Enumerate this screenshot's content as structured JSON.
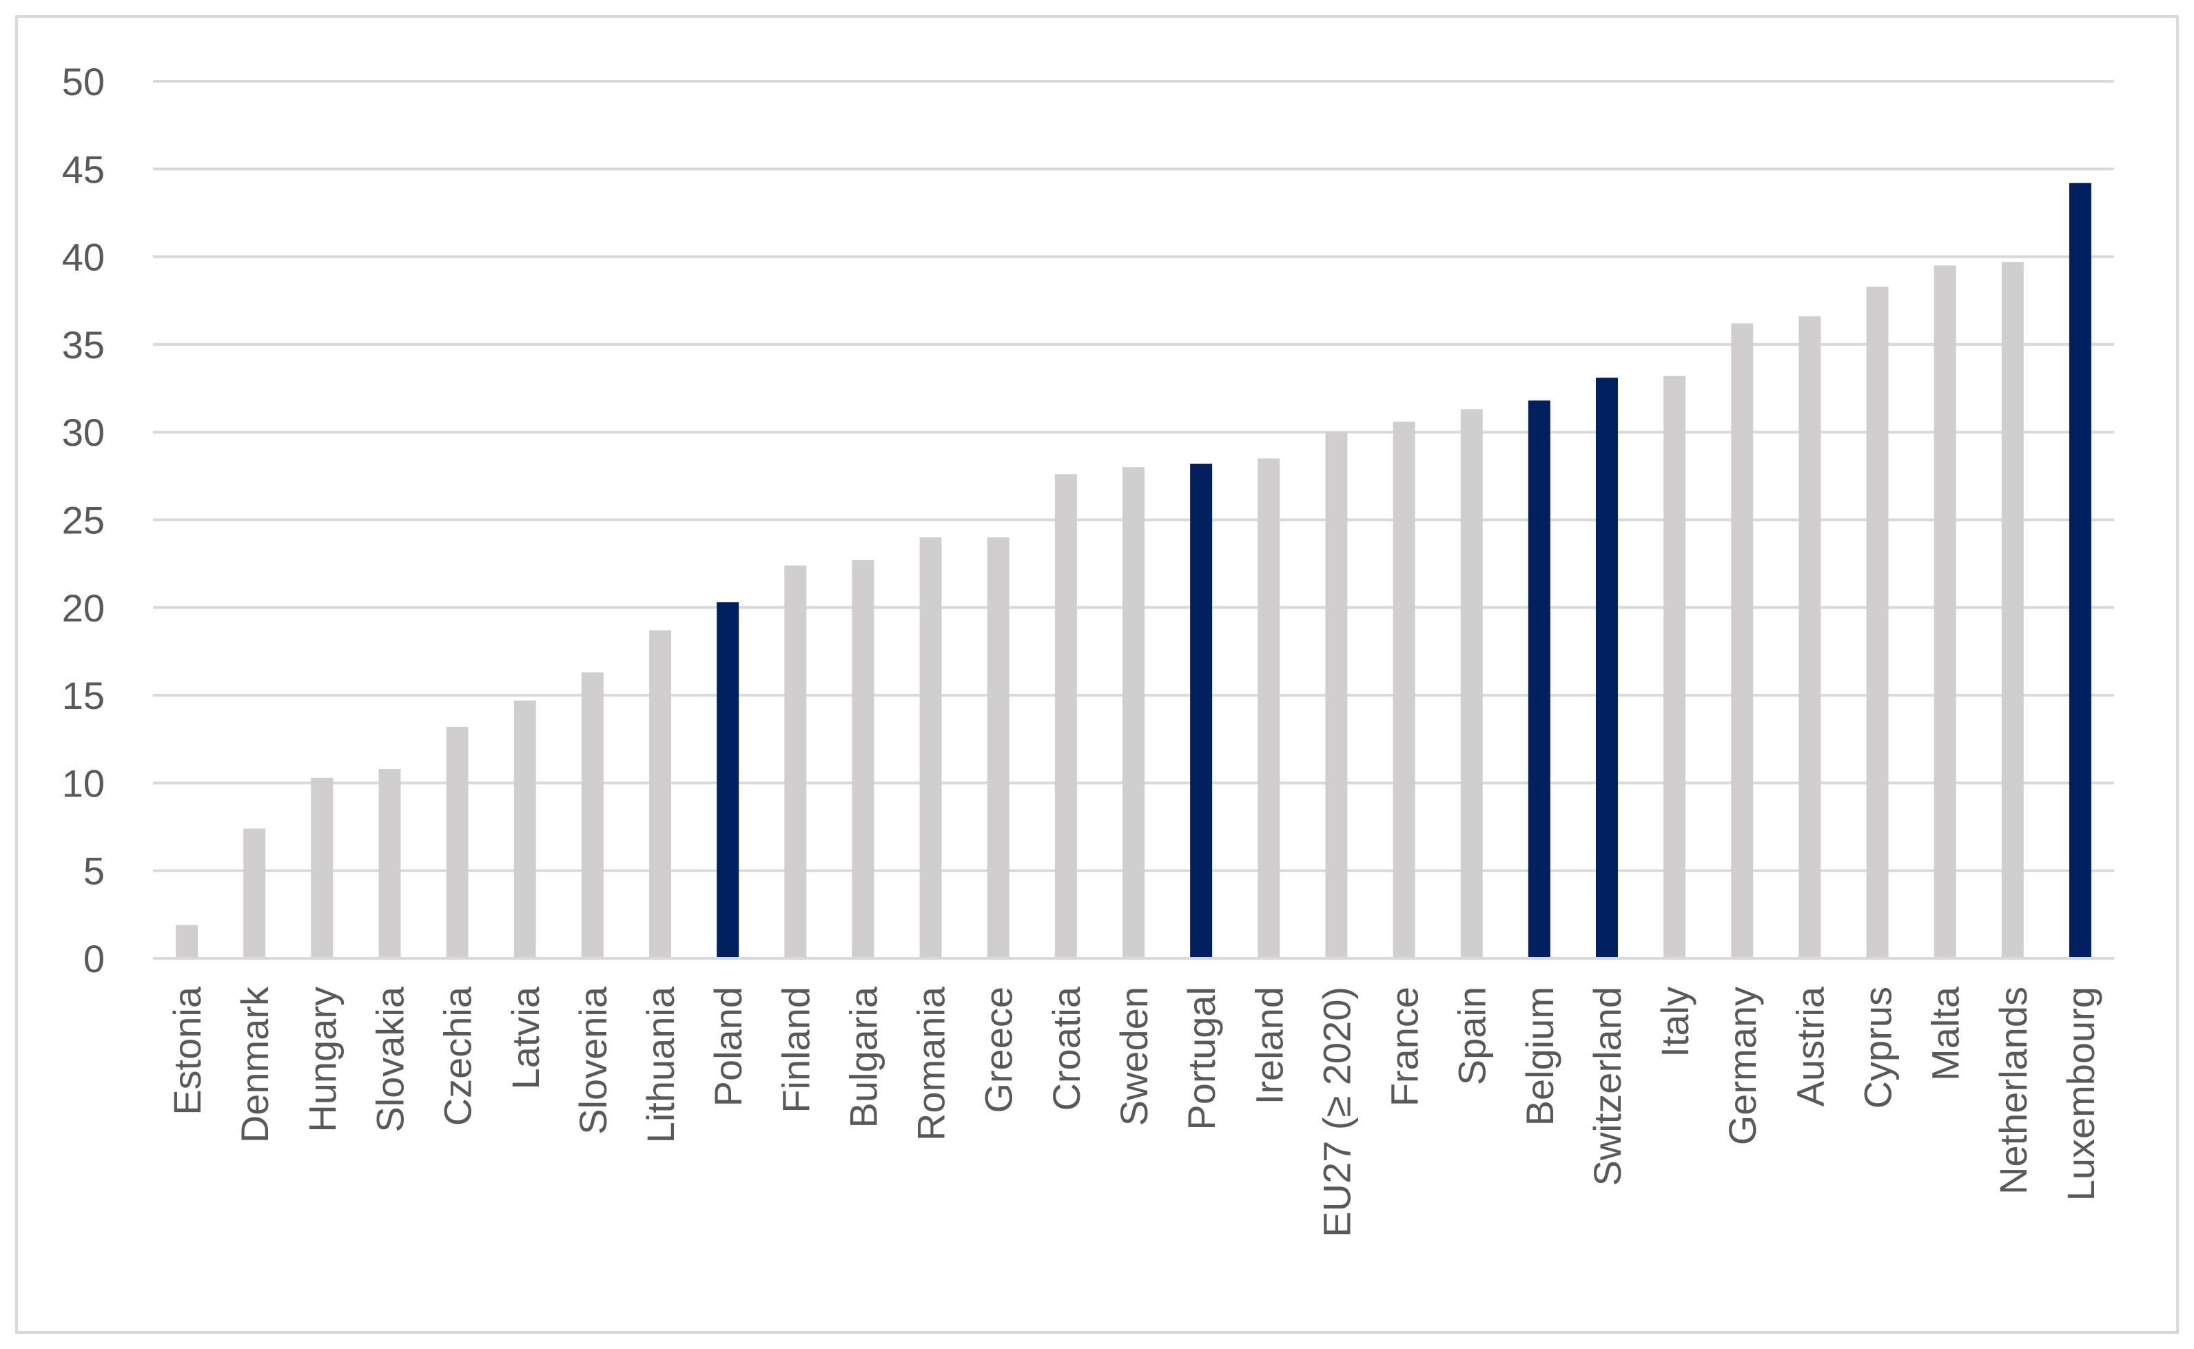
{
  "chart_data": {
    "type": "bar",
    "title": "",
    "xlabel": "",
    "ylabel": "",
    "ylim": [
      0,
      50
    ],
    "yticks": [
      0,
      5,
      10,
      15,
      20,
      25,
      30,
      35,
      40,
      45,
      50
    ],
    "grid": true,
    "legend": "none",
    "colors": {
      "default": "#d0cece",
      "highlight": "#002060",
      "gridline": "#d9d9d9",
      "text": "#595959"
    },
    "categories": [
      "Estonia",
      "Denmark",
      "Hungary",
      "Slovakia",
      "Czechia",
      "Latvia",
      "Slovenia",
      "Lithuania",
      "Poland",
      "Finland",
      "Bulgaria",
      "Romania",
      "Greece",
      "Croatia",
      "Sweden",
      "Portugal",
      "Ireland",
      "EU27 (≥ 2020)",
      "France",
      "Spain",
      "Belgium",
      "Switzerland",
      "Italy",
      "Germany",
      "Austria",
      "Cyprus",
      "Malta",
      "Netherlands",
      "Luxembourg"
    ],
    "values": [
      1.9,
      7.4,
      10.3,
      10.8,
      13.2,
      14.7,
      16.3,
      18.7,
      20.3,
      22.4,
      22.7,
      24.0,
      24.0,
      27.6,
      28.0,
      28.2,
      28.5,
      30.0,
      30.6,
      31.3,
      31.8,
      33.1,
      33.2,
      36.2,
      36.6,
      38.3,
      39.5,
      39.7,
      44.2
    ],
    "highlighted": [
      "Poland",
      "Portugal",
      "Belgium",
      "Switzerland",
      "Luxembourg"
    ]
  }
}
